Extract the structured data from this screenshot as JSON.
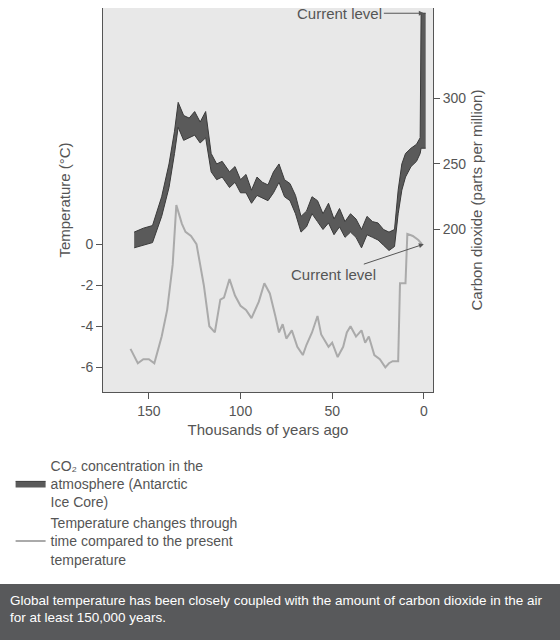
{
  "chart_data": {
    "type": "line",
    "xlabel": "Thousands of years ago",
    "ylabel": "Temperature (°C)",
    "y2label": "Carbon dioxide (parts per million)",
    "caption": "Global temperature has been closely coupled with the amount of carbon dioxide in the air for at least 150,000 years.",
    "xlim": [
      175,
      -5
    ],
    "xticks": [
      150,
      100,
      50,
      0
    ],
    "ylim": [
      -7.2,
      11.5
    ],
    "yticks": [
      -6,
      -4,
      -2,
      0
    ],
    "y2lim": [
      76,
      369
    ],
    "y2ticks": [
      200,
      250,
      300
    ],
    "grid": false,
    "legend": "bottom",
    "series": [
      {
        "name": "CO₂ concentration in the atmosphere (Antarctic Ice Core)",
        "type": "area",
        "axis": "y2",
        "color": "#5a5a5a",
        "x": [
          158,
          153,
          148,
          143,
          139,
          136,
          134,
          131,
          128,
          125,
          122,
          119,
          116,
          113,
          110,
          106,
          103,
          100,
          97,
          94,
          91,
          88,
          85,
          82,
          79,
          76,
          73,
          70,
          67,
          64,
          61,
          58,
          55,
          52,
          49,
          46,
          43,
          40,
          37,
          34,
          31,
          28,
          25,
          22,
          19,
          16,
          14,
          12,
          10,
          7,
          4,
          2,
          1.5,
          -1
        ],
        "high": [
          198,
          201,
          203,
          225,
          250,
          275,
          297,
          287,
          285,
          290,
          282,
          290,
          258,
          250,
          252,
          244,
          248,
          238,
          242,
          230,
          240,
          236,
          234,
          244,
          250,
          238,
          235,
          226,
          210,
          214,
          225,
          222,
          212,
          220,
          208,
          216,
          206,
          212,
          208,
          200,
          210,
          206,
          205,
          200,
          198,
          200,
          230,
          250,
          258,
          262,
          265,
          270,
          365,
          365
        ],
        "low": [
          186,
          188,
          190,
          210,
          232,
          258,
          278,
          268,
          270,
          272,
          266,
          270,
          244,
          238,
          240,
          232,
          236,
          228,
          228,
          220,
          226,
          224,
          222,
          228,
          236,
          225,
          222,
          212,
          198,
          202,
          212,
          206,
          200,
          205,
          196,
          202,
          194,
          198,
          194,
          186,
          196,
          194,
          192,
          188,
          184,
          187,
          212,
          230,
          240,
          248,
          252,
          258,
          262,
          262
        ]
      },
      {
        "name": "Temperature changes through time compared to the present temperature",
        "type": "line",
        "axis": "y",
        "color": "#aaaaaa",
        "x": [
          160,
          156,
          153,
          150,
          147,
          143,
          140,
          137,
          135,
          132,
          130,
          127,
          124,
          120,
          117,
          114,
          111,
          109,
          106,
          103,
          100,
          97,
          94,
          90,
          87,
          84,
          81,
          79,
          77,
          75,
          72,
          69,
          66,
          64,
          61,
          58,
          56,
          52,
          50,
          47,
          44,
          42,
          40,
          37,
          34,
          32,
          30,
          27,
          24,
          21,
          19,
          17,
          14,
          13,
          10,
          9,
          6,
          3,
          1
        ],
        "values": [
          -5.1,
          -5.8,
          -5.6,
          -5.6,
          -5.8,
          -4.5,
          -3.2,
          -1.0,
          1.9,
          1.0,
          0.6,
          0.4,
          0.0,
          -2.0,
          -4.0,
          -4.3,
          -2.7,
          -2.6,
          -1.7,
          -2.5,
          -3.0,
          -3.2,
          -3.6,
          -2.8,
          -1.9,
          -2.4,
          -3.5,
          -4.3,
          -3.9,
          -4.6,
          -4.2,
          -5.0,
          -5.4,
          -4.9,
          -4.3,
          -3.5,
          -4.4,
          -5.0,
          -4.8,
          -5.5,
          -5.0,
          -4.3,
          -4.0,
          -4.5,
          -4.2,
          -4.8,
          -4.5,
          -5.4,
          -5.6,
          -6.0,
          -5.8,
          -5.7,
          -5.7,
          -1.9,
          -1.9,
          0.5,
          0.4,
          0.2,
          0.0
        ]
      }
    ],
    "annotations": [
      {
        "text": "Current level",
        "x": 0,
        "y": 365,
        "axis": "y2"
      },
      {
        "text": "Current level",
        "x": 0,
        "y": 0,
        "axis": "y"
      }
    ]
  }
}
